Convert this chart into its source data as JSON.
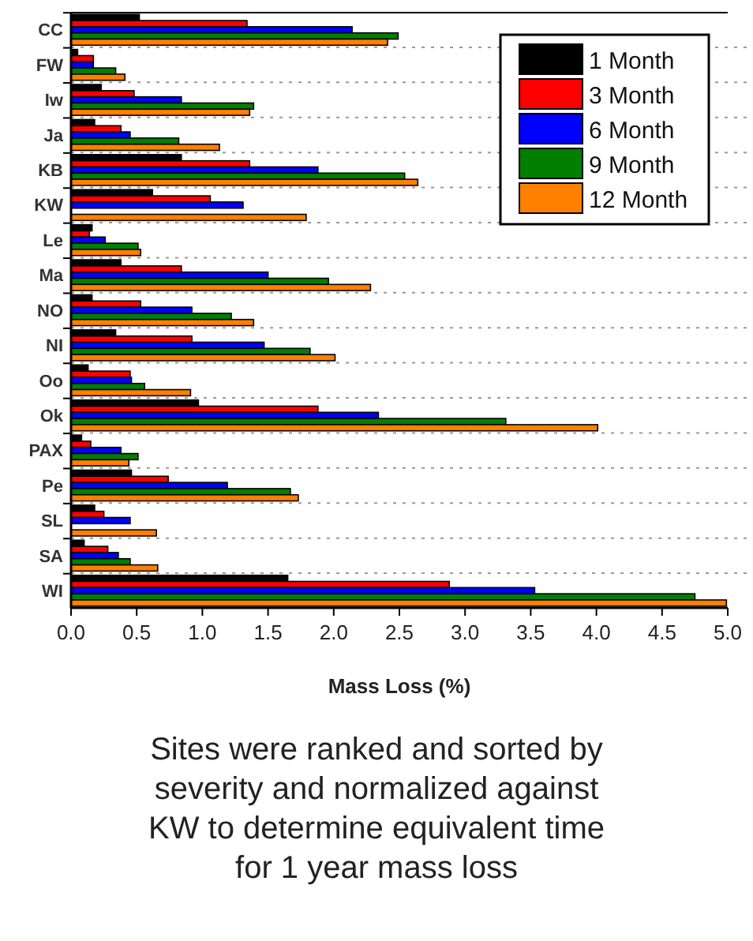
{
  "chart_data": {
    "type": "bar",
    "orientation": "horizontal",
    "xlabel": "Mass Loss (%)",
    "categories": [
      "CC",
      "FW",
      "Iw",
      "Ja",
      "KB",
      "KW",
      "Le",
      "Ma",
      "NO",
      "NI",
      "Oo",
      "Ok",
      "PAX",
      "Pe",
      "SL",
      "SA",
      "WI"
    ],
    "series": [
      {
        "name": "1 Month",
        "color": "#000000",
        "values": [
          0.52,
          0.05,
          0.23,
          0.18,
          0.84,
          0.62,
          0.16,
          0.38,
          0.16,
          0.34,
          0.13,
          0.97,
          0.08,
          0.46,
          0.18,
          0.1,
          1.65
        ]
      },
      {
        "name": "3 Month",
        "color": "#ff0000",
        "values": [
          1.34,
          0.17,
          0.48,
          0.38,
          1.36,
          1.06,
          0.14,
          0.84,
          0.53,
          0.92,
          0.45,
          1.88,
          0.15,
          0.74,
          0.25,
          0.28,
          2.88
        ]
      },
      {
        "name": "6 Month",
        "color": "#0000ff",
        "values": [
          2.14,
          0.17,
          0.84,
          0.45,
          1.88,
          1.31,
          0.26,
          1.5,
          0.92,
          1.47,
          0.46,
          2.34,
          0.38,
          1.19,
          0.45,
          0.36,
          3.53
        ]
      },
      {
        "name": "9 Month",
        "color": "#007f00",
        "values": [
          2.49,
          0.34,
          1.39,
          0.82,
          2.54,
          null,
          0.51,
          1.96,
          1.22,
          1.82,
          0.56,
          3.31,
          0.51,
          1.67,
          null,
          0.45,
          4.75
        ]
      },
      {
        "name": "12 Month",
        "color": "#ff8000",
        "values": [
          2.41,
          0.41,
          1.36,
          1.13,
          2.64,
          1.79,
          0.53,
          2.28,
          1.39,
          2.01,
          0.91,
          4.01,
          0.44,
          1.73,
          0.65,
          0.66,
          4.99
        ]
      }
    ],
    "xlim": [
      0,
      5
    ],
    "xticks": [
      {
        "value": 0,
        "label": "0.0"
      },
      {
        "value": 0.5,
        "label": "0.5"
      },
      {
        "value": 1,
        "label": "1.0"
      },
      {
        "value": 1.5,
        "label": "1.5"
      },
      {
        "value": 2,
        "label": "2.0"
      },
      {
        "value": 2.5,
        "label": "2.5"
      },
      {
        "value": 3,
        "label": "3.0"
      },
      {
        "value": 3.5,
        "label": "3.5"
      },
      {
        "value": 4,
        "label": "4.0"
      },
      {
        "value": 4.5,
        "label": "4.5"
      },
      {
        "value": 5,
        "label": "5.0"
      }
    ],
    "grid": "y",
    "legend": "top right",
    "annotations": [
      "Sites were ranked and sorted by severity and normalized against KW to determine equivalent time for 1 year mass loss"
    ]
  }
}
